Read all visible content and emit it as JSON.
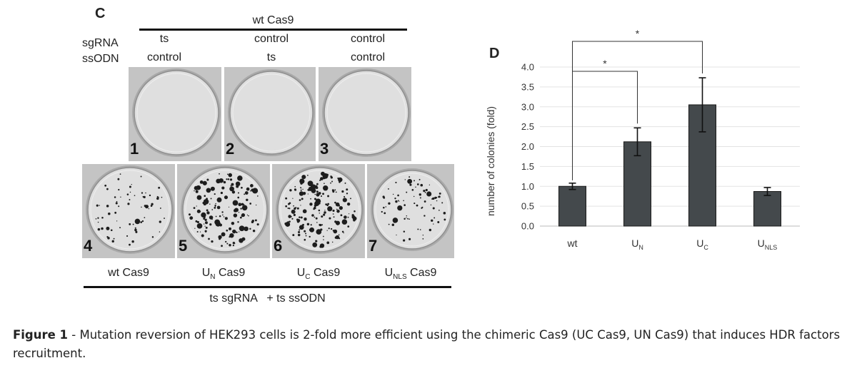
{
  "panel_c": {
    "letter": "C",
    "header": "wt Cas9",
    "row_labels": [
      "sgRNA",
      "ssODN"
    ],
    "columns": [
      {
        "sgRNA": "ts",
        "ssODN": "control"
      },
      {
        "sgRNA": "control",
        "ssODN": "ts"
      },
      {
        "sgRNA": "control",
        "ssODN": "control"
      }
    ],
    "plates": [
      {
        "number": "1"
      },
      {
        "number": "2"
      },
      {
        "number": "3"
      },
      {
        "number": "4"
      },
      {
        "number": "5"
      },
      {
        "number": "6"
      },
      {
        "number": "7"
      }
    ],
    "bottom_labels": [
      {
        "main": "U",
        "sub": "N",
        "rest": " Cas9"
      },
      {
        "main": "U",
        "sub": "C",
        "rest": " Cas9"
      },
      {
        "main": "U",
        "sub": "NLS",
        "rest": " Cas9"
      }
    ],
    "bottom_first": "wt Cas9",
    "footer": "ts sgRNA   + ts ssODN"
  },
  "panel_d": {
    "letter": "D"
  },
  "chart_data": {
    "type": "bar",
    "categories": [
      {
        "main": "wt",
        "sub": ""
      },
      {
        "main": "U",
        "sub": "N"
      },
      {
        "main": "U",
        "sub": "C"
      },
      {
        "main": "U",
        "sub": "NLS"
      }
    ],
    "values": [
      1.0,
      2.12,
      3.05,
      0.87
    ],
    "errors": [
      0.08,
      0.35,
      0.68,
      0.1
    ],
    "ylabel": "number of colonies (fold)",
    "ylim": [
      0,
      4.0
    ],
    "yticks": [
      "0.0",
      "0.5",
      "1.0",
      "1.5",
      "2.0",
      "2.5",
      "3.0",
      "3.5",
      "4.0"
    ],
    "bar_color": "#44494c",
    "significance": [
      {
        "from": 0,
        "to": 1,
        "label": "*"
      },
      {
        "from": 0,
        "to": 2,
        "label": "*"
      }
    ]
  },
  "caption": {
    "bold": "Figure 1",
    "text": " - Mutation reversion of HEK293 cells is 2-fold more efficient using the chimeric Cas9 (UC Cas9, UN Cas9) that induces HDR factors recruitment."
  }
}
